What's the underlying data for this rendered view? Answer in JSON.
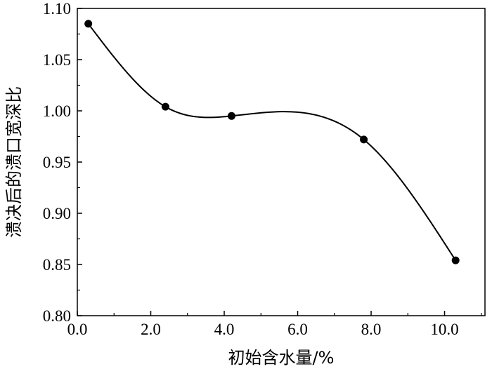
{
  "chart_data": {
    "type": "line",
    "title": "",
    "xlabel": "初始含水量/%",
    "ylabel": "溃决后的溃口宽深比",
    "xlim": [
      0,
      11.1
    ],
    "ylim": [
      0.8,
      1.1
    ],
    "x_ticks": [
      0,
      2,
      4,
      6,
      8,
      10
    ],
    "x_tick_labels": [
      "0.0",
      "2.0",
      "4.0",
      "6.0",
      "8.0",
      "10.0"
    ],
    "y_ticks": [
      0.8,
      0.85,
      0.9,
      0.95,
      1.0,
      1.05,
      1.1
    ],
    "y_tick_labels": [
      "0.80",
      "0.85",
      "0.90",
      "0.95",
      "1.00",
      "1.05",
      "1.10"
    ],
    "grid": false,
    "legend": "none",
    "smooth": true,
    "series": [
      {
        "x": [
          0.3,
          2.4,
          4.2,
          7.8,
          10.3
        ],
        "y": [
          1.085,
          1.004,
          0.995,
          0.972,
          0.854
        ],
        "color": "#000000",
        "marker": "filled-circle"
      }
    ]
  }
}
